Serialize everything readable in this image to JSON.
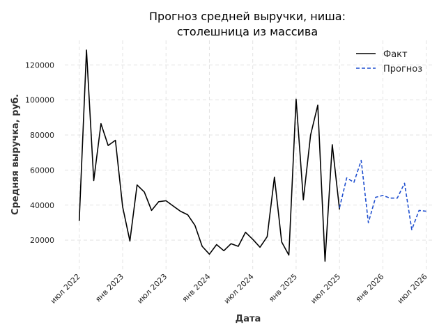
{
  "chart_data": {
    "type": "line",
    "title_lines": [
      "Прогноз средней выручки, ниша:",
      "столешница из массива"
    ],
    "xlabel": "Дата",
    "ylabel": "Средняя выручка, руб.",
    "x_tick_labels": [
      "июл 2022",
      "янв 2023",
      "июл 2023",
      "янв 2024",
      "июл 2024",
      "янв 2025",
      "июл 2025",
      "янв 2026",
      "июл 2026"
    ],
    "y_ticks": [
      20000,
      40000,
      60000,
      80000,
      100000,
      120000
    ],
    "y_tick_labels": [
      "20000",
      "40000",
      "60000",
      "80000",
      "100000",
      "120000"
    ],
    "ylim": [
      3000,
      134000
    ],
    "x_range": [
      "2022-05",
      "2026-08"
    ],
    "grid": true,
    "legend_position": "top-right",
    "series": [
      {
        "name": "Факт",
        "style": "solid",
        "color": "#000000",
        "points": [
          [
            "2022-07",
            31000
          ],
          [
            "2022-08",
            128500
          ],
          [
            "2022-09",
            54000
          ],
          [
            "2022-10",
            86500
          ],
          [
            "2022-11",
            74000
          ],
          [
            "2022-12",
            77000
          ],
          [
            "2023-01",
            39000
          ],
          [
            "2023-02",
            19500
          ],
          [
            "2023-03",
            51500
          ],
          [
            "2023-04",
            47500
          ],
          [
            "2023-05",
            37000
          ],
          [
            "2023-06",
            42000
          ],
          [
            "2023-07",
            42500
          ],
          [
            "2023-08",
            39500
          ],
          [
            "2023-09",
            36500
          ],
          [
            "2023-10",
            34500
          ],
          [
            "2023-11",
            28500
          ],
          [
            "2023-12",
            16500
          ],
          [
            "2024-01",
            12000
          ],
          [
            "2024-02",
            17500
          ],
          [
            "2024-03",
            14000
          ],
          [
            "2024-04",
            18000
          ],
          [
            "2024-05",
            16500
          ],
          [
            "2024-06",
            24500
          ],
          [
            "2024-07",
            20500
          ],
          [
            "2024-08",
            16000
          ],
          [
            "2024-09",
            22000
          ],
          [
            "2024-10",
            56000
          ],
          [
            "2024-11",
            19000
          ],
          [
            "2024-12",
            11500
          ],
          [
            "2025-01",
            100500
          ],
          [
            "2025-02",
            43000
          ],
          [
            "2025-03",
            80000
          ],
          [
            "2025-04",
            97000
          ],
          [
            "2025-05",
            8000
          ],
          [
            "2025-06",
            74500
          ],
          [
            "2025-07",
            37500
          ]
        ]
      },
      {
        "name": "Прогноз",
        "style": "dashed",
        "color": "#1f4fcf",
        "points": [
          [
            "2025-07",
            38500
          ],
          [
            "2025-08",
            55500
          ],
          [
            "2025-09",
            53000
          ],
          [
            "2025-10",
            65500
          ],
          [
            "2025-11",
            30000
          ],
          [
            "2025-12",
            44500
          ],
          [
            "2026-01",
            45500
          ],
          [
            "2026-02",
            44000
          ],
          [
            "2026-03",
            44000
          ],
          [
            "2026-04",
            52500
          ],
          [
            "2026-05",
            26000
          ],
          [
            "2026-06",
            37000
          ],
          [
            "2026-07",
            36500
          ]
        ]
      }
    ]
  }
}
